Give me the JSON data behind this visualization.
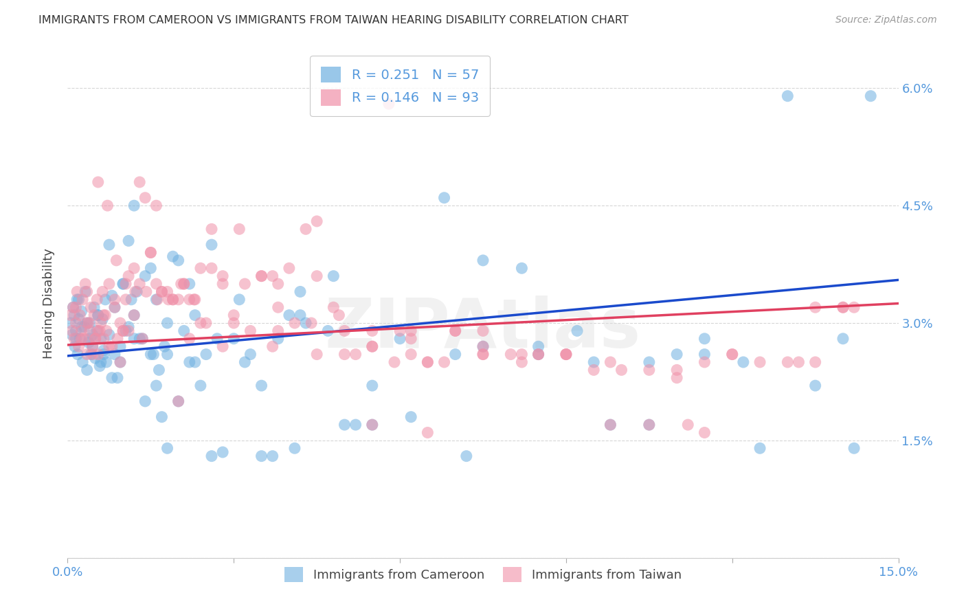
{
  "title": "IMMIGRANTS FROM CAMEROON VS IMMIGRANTS FROM TAIWAN HEARING DISABILITY CORRELATION CHART",
  "source": "Source: ZipAtlas.com",
  "ylabel": "Hearing Disability",
  "xlim": [
    0.0,
    15.0
  ],
  "ylim": [
    0.0,
    6.5
  ],
  "yticks": [
    0.0,
    1.5,
    3.0,
    4.5,
    6.0
  ],
  "ytick_labels": [
    "",
    "1.5%",
    "3.0%",
    "4.5%",
    "6.0%"
  ],
  "xticks": [
    0.0,
    3.0,
    6.0,
    9.0,
    12.0,
    15.0
  ],
  "xtick_labels": [
    "0.0%",
    "",
    "",
    "",
    "",
    "15.0%"
  ],
  "cameroon_R": 0.251,
  "cameroon_N": 57,
  "taiwan_R": 0.146,
  "taiwan_N": 93,
  "cameroon_color": "#6EB0E0",
  "taiwan_color": "#F090A8",
  "trend_cameroon_color": "#1A4ACC",
  "trend_taiwan_color": "#E04060",
  "background_color": "#FFFFFF",
  "grid_color": "#CCCCCC",
  "watermark": "ZIPAtlas",
  "trend_cam_x0": 0.0,
  "trend_cam_y0": 2.58,
  "trend_cam_x1": 15.0,
  "trend_cam_y1": 3.55,
  "trend_tai_x0": 0.0,
  "trend_tai_y0": 2.72,
  "trend_tai_x1": 15.0,
  "trend_tai_y1": 3.25,
  "cameroon_x": [
    0.05,
    0.08,
    0.1,
    0.12,
    0.13,
    0.15,
    0.17,
    0.18,
    0.2,
    0.22,
    0.25,
    0.27,
    0.3,
    0.32,
    0.35,
    0.38,
    0.4,
    0.42,
    0.45,
    0.48,
    0.5,
    0.53,
    0.55,
    0.58,
    0.6,
    0.63,
    0.65,
    0.68,
    0.7,
    0.75,
    0.8,
    0.85,
    0.9,
    0.95,
    1.0,
    1.05,
    1.1,
    1.15,
    1.2,
    1.25,
    1.3,
    1.4,
    1.5,
    1.6,
    1.7,
    1.8,
    1.9,
    2.0,
    2.2,
    2.4,
    2.6,
    2.8,
    3.0,
    3.5,
    4.2,
    5.5,
    6.8
  ],
  "cameroon_y": [
    3.0,
    2.85,
    3.2,
    3.1,
    2.7,
    2.9,
    3.3,
    2.6,
    3.05,
    2.8,
    3.15,
    2.5,
    2.95,
    3.4,
    2.4,
    2.75,
    3.0,
    2.6,
    2.85,
    3.2,
    2.55,
    2.9,
    3.1,
    2.45,
    2.8,
    3.05,
    2.65,
    3.3,
    2.5,
    4.0,
    3.35,
    2.6,
    2.3,
    2.7,
    3.5,
    2.9,
    4.05,
    3.3,
    2.8,
    3.4,
    2.8,
    3.6,
    3.7,
    2.2,
    1.8,
    2.6,
    3.85,
    3.8,
    2.5,
    2.2,
    1.3,
    1.35,
    2.8,
    1.3,
    3.1,
    1.7,
    4.6
  ],
  "cameroon_x2": [
    7.5,
    8.5,
    9.5,
    10.5,
    11.5,
    13.0,
    14.5,
    1.5,
    1.8,
    2.1,
    2.3,
    2.5,
    3.2,
    3.5,
    3.7,
    4.0,
    4.3,
    4.7,
    5.2,
    0.15,
    0.25,
    0.35,
    0.45,
    0.55,
    0.65,
    0.75,
    0.85,
    0.95,
    1.1,
    1.2,
    1.35,
    1.55,
    1.65,
    1.75,
    2.2,
    2.6,
    3.1,
    3.8,
    4.2,
    4.8,
    5.5,
    6.2,
    7.0,
    7.5,
    8.2,
    9.2,
    10.5,
    11.5,
    12.2,
    13.5,
    14.2,
    0.2,
    0.4,
    0.6,
    0.8,
    1.0,
    1.2,
    1.4,
    1.6,
    1.8,
    2.0,
    2.3,
    2.7,
    3.3,
    4.1,
    5.0,
    6.0,
    7.2,
    8.5,
    9.8,
    11.0,
    12.5,
    14.0
  ],
  "cameroon_y2": [
    2.7,
    2.6,
    2.5,
    1.7,
    2.8,
    5.9,
    5.9,
    2.6,
    1.4,
    2.9,
    2.5,
    2.6,
    2.5,
    2.2,
    1.3,
    3.1,
    3.0,
    2.9,
    1.7,
    2.8,
    2.95,
    3.0,
    2.7,
    3.1,
    2.6,
    2.85,
    3.2,
    2.5,
    2.95,
    3.1,
    2.8,
    2.6,
    2.4,
    2.7,
    3.5,
    4.0,
    3.3,
    2.8,
    3.4,
    3.6,
    2.2,
    1.8,
    2.6,
    3.8,
    3.7,
    2.9,
    2.5,
    2.6,
    2.5,
    2.2,
    1.4,
    3.3,
    2.8,
    2.5,
    2.3,
    3.5,
    4.5,
    2.0,
    3.3,
    3.0,
    2.0,
    3.1,
    2.8,
    2.6,
    1.4,
    1.7,
    2.8,
    1.3,
    2.7,
    1.7,
    2.6,
    1.4,
    2.8
  ],
  "taiwan_x": [
    0.05,
    0.08,
    0.1,
    0.12,
    0.15,
    0.17,
    0.2,
    0.22,
    0.25,
    0.27,
    0.3,
    0.32,
    0.35,
    0.38,
    0.4,
    0.42,
    0.45,
    0.48,
    0.5,
    0.53,
    0.55,
    0.58,
    0.6,
    0.63,
    0.65,
    0.68,
    0.7,
    0.75,
    0.8,
    0.85,
    0.9,
    0.95,
    1.0,
    1.05,
    1.1,
    1.2,
    1.3,
    1.4,
    1.5,
    1.6,
    1.7,
    1.8,
    1.9,
    2.0,
    2.1,
    2.2,
    2.4,
    2.6,
    2.8,
    3.0,
    3.2,
    3.5,
    3.8,
    4.1,
    4.5,
    5.0,
    5.5,
    6.2,
    7.0,
    7.5,
    8.2,
    9.0,
    9.8,
    10.5,
    11.2,
    12.0,
    13.0,
    14.0
  ],
  "taiwan_y": [
    3.1,
    2.9,
    3.2,
    2.8,
    3.0,
    3.4,
    2.7,
    3.1,
    2.9,
    3.3,
    2.8,
    3.5,
    2.6,
    3.0,
    2.9,
    3.2,
    2.7,
    3.1,
    2.8,
    3.3,
    2.6,
    2.9,
    3.0,
    3.4,
    2.8,
    3.1,
    2.9,
    3.5,
    2.7,
    3.2,
    2.8,
    3.0,
    2.9,
    3.3,
    3.6,
    3.7,
    4.8,
    4.6,
    3.9,
    3.5,
    3.4,
    3.4,
    3.3,
    3.3,
    3.5,
    3.3,
    3.7,
    4.2,
    3.6,
    3.0,
    3.5,
    3.6,
    3.2,
    3.0,
    3.6,
    2.9,
    2.7,
    2.9,
    2.9,
    2.6,
    2.6,
    2.6,
    2.5,
    1.7,
    1.7,
    2.6,
    2.5,
    3.2
  ],
  "taiwan_x2": [
    0.15,
    0.25,
    0.35,
    0.45,
    0.55,
    0.65,
    0.75,
    0.85,
    0.95,
    1.1,
    1.2,
    1.35,
    1.5,
    1.7,
    1.9,
    2.1,
    2.3,
    2.5,
    2.8,
    3.0,
    3.5,
    4.0,
    4.5,
    5.0,
    5.5,
    6.5,
    7.5,
    8.5,
    9.5,
    10.5,
    11.5,
    12.5,
    13.5,
    1.0,
    1.3,
    1.6,
    2.0,
    2.4,
    2.8,
    3.3,
    3.8,
    4.3,
    4.9,
    5.5,
    6.5,
    7.5,
    8.5,
    10.0,
    12.0,
    13.5,
    6.0,
    7.0,
    8.0,
    9.0,
    11.0,
    14.0,
    5.8,
    6.8,
    0.5,
    2.2,
    3.7,
    4.8,
    6.2,
    8.2,
    9.8,
    11.5,
    13.2,
    5.5,
    6.5,
    4.5,
    3.8,
    0.35,
    0.55,
    0.72,
    0.88,
    1.05,
    1.22,
    1.42,
    1.62,
    1.82,
    2.05,
    2.28,
    2.6,
    3.1,
    3.7,
    4.4,
    5.2,
    6.2,
    7.5,
    9.0,
    11.0,
    14.2,
    5.9
  ],
  "taiwan_y2": [
    3.2,
    2.8,
    3.0,
    2.6,
    2.9,
    3.1,
    2.7,
    3.3,
    2.5,
    2.9,
    3.1,
    2.8,
    3.9,
    3.4,
    3.3,
    3.5,
    3.3,
    3.0,
    3.5,
    3.1,
    3.6,
    3.7,
    4.3,
    2.6,
    2.7,
    2.5,
    2.6,
    2.6,
    2.4,
    2.4,
    2.5,
    2.5,
    3.2,
    2.9,
    3.5,
    4.5,
    2.0,
    3.0,
    2.7,
    2.9,
    3.5,
    4.2,
    3.1,
    2.9,
    2.5,
    2.9,
    2.6,
    2.4,
    2.6,
    2.5,
    2.9,
    2.9,
    2.6,
    2.6,
    2.3,
    3.2,
    5.8,
    2.5,
    2.8,
    2.8,
    2.7,
    3.2,
    2.6,
    2.5,
    1.7,
    1.6,
    2.5,
    1.7,
    1.6,
    2.6,
    2.9,
    3.4,
    4.8,
    4.5,
    3.8,
    3.5,
    3.4,
    3.4,
    3.3,
    3.3,
    3.5,
    3.3,
    3.7,
    4.2,
    3.6,
    3.0,
    2.6,
    2.8,
    2.7,
    2.6,
    2.4,
    3.2,
    2.5
  ]
}
